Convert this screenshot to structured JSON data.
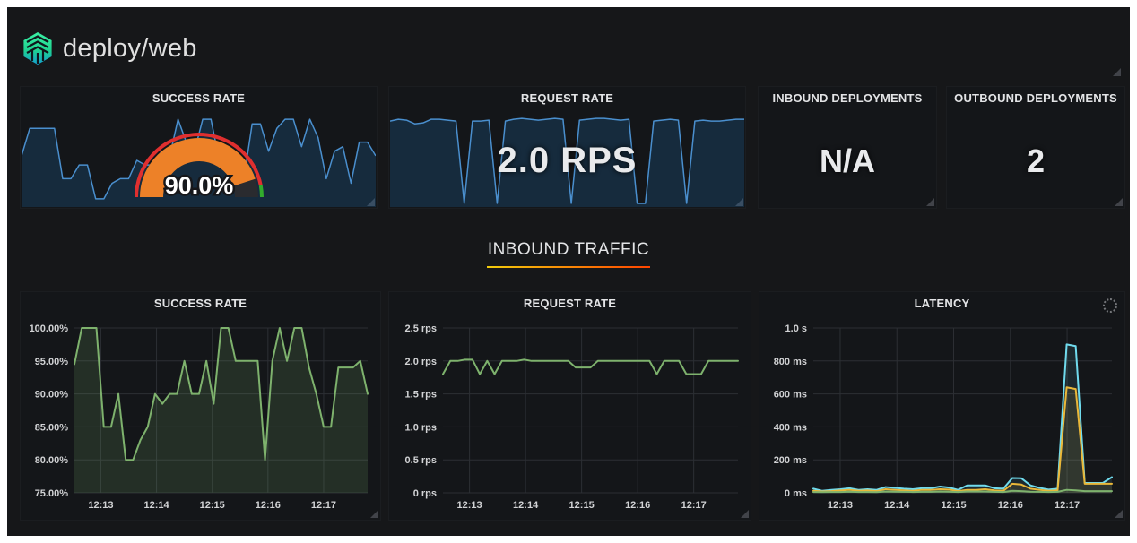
{
  "header": {
    "title": "deploy/web",
    "logo": "linkerd-logo"
  },
  "panels": {
    "success_rate_stat": {
      "title": "SUCCESS RATE",
      "value": "90.0%"
    },
    "request_rate_stat": {
      "title": "REQUEST RATE",
      "value": "2.0 RPS"
    },
    "inbound_deployments": {
      "title": "INBOUND DEPLOYMENTS",
      "value": "N/A"
    },
    "outbound_deployments": {
      "title": "OUTBOUND DEPLOYMENTS",
      "value": "2"
    }
  },
  "section": {
    "title": "INBOUND TRAFFIC"
  },
  "colors": {
    "blue_spark_line": "#4a8fce",
    "blue_spark_fill": "rgba(31,120,193,0.22)",
    "green_series": "#7EB26D",
    "cyan_series": "#70DBED",
    "yellow_series": "#EAB839",
    "gauge_orange": "#ED8128",
    "gauge_red_ring": "#E02F2F",
    "gauge_green_ring": "#32AC2D",
    "section_underline_from": "#f2cc0c",
    "section_underline_to": "#ff4400",
    "panel_bg": "#141619",
    "dashboard_bg": "#161719"
  },
  "chart_data": [
    {
      "id": "success-rate-sparkline",
      "type": "sparkline",
      "panel": "SUCCESS RATE",
      "ylim": [
        0,
        1
      ],
      "line_color": "#4a8fce",
      "fill_color": "rgba(31,120,193,0.22)",
      "values": [
        0.55,
        0.85,
        0.85,
        0.85,
        0.85,
        0.3,
        0.3,
        0.45,
        0.45,
        0.08,
        0.08,
        0.25,
        0.3,
        0.3,
        0.5,
        0.45,
        0.45,
        0.6,
        0.55,
        0.95,
        0.7,
        0.6,
        0.95,
        0.95,
        0.5,
        0.65,
        0.3,
        0.3,
        0.9,
        0.9,
        0.6,
        0.85,
        0.95,
        0.95,
        0.65,
        0.95,
        0.75,
        0.3,
        0.6,
        0.65,
        0.25,
        0.7,
        0.7,
        0.55
      ]
    },
    {
      "id": "success-rate-gauge",
      "type": "gauge",
      "value": 90.0,
      "label": "90.0%",
      "unit": "%",
      "min": 0,
      "max": 100,
      "value_band_color": "#ED8128",
      "empty_band_color": "#2a2b2f",
      "threshold_ring": [
        {
          "from": 0,
          "to": 94,
          "color": "#E02F2F"
        },
        {
          "from": 94,
          "to": 100,
          "color": "#32AC2D"
        }
      ]
    },
    {
      "id": "request-rate-sparkline",
      "type": "sparkline",
      "panel": "REQUEST RATE",
      "ylim": [
        0,
        1
      ],
      "line_color": "#4a8fce",
      "fill_color": "rgba(31,120,193,0.22)",
      "values": [
        0.93,
        0.95,
        0.94,
        0.9,
        0.91,
        0.95,
        0.95,
        0.94,
        0.93,
        0.03,
        0.93,
        0.93,
        0.94,
        0.03,
        0.93,
        0.95,
        0.96,
        0.95,
        0.94,
        0.95,
        0.96,
        0.95,
        0.03,
        0.94,
        0.95,
        0.96,
        0.96,
        0.95,
        0.94,
        0.95,
        0.03,
        0.03,
        0.93,
        0.94,
        0.95,
        0.94,
        0.03,
        0.93,
        0.94,
        0.93,
        0.93,
        0.94,
        0.95,
        0.95
      ]
    },
    {
      "id": "inbound-success-rate-chart",
      "type": "line",
      "title": "SUCCESS RATE",
      "ylim": [
        75,
        100
      ],
      "grid": true,
      "legend": "none",
      "yticks": {
        "values": [
          75,
          80,
          85,
          90,
          95,
          100
        ],
        "labels": [
          "75.00%",
          "80.00%",
          "85.00%",
          "90.00%",
          "95.00%",
          "100.00%"
        ]
      },
      "xticks": {
        "labels": [
          "12:13",
          "12:14",
          "12:15",
          "12:16",
          "12:17"
        ],
        "positions": [
          0.09,
          0.28,
          0.47,
          0.66,
          0.85
        ]
      },
      "series": [
        {
          "name": "success-rate",
          "color": "#7EB26D",
          "fill": "rgba(126,178,109,0.16)",
          "values": [
            94.5,
            100,
            100,
            100,
            85,
            85,
            90,
            80,
            80,
            83,
            85,
            90,
            88.5,
            90,
            90,
            95,
            90,
            90,
            95,
            88.5,
            100,
            100,
            95,
            95,
            95,
            95,
            80,
            95,
            100,
            95,
            100,
            100,
            94,
            90,
            85,
            85,
            94,
            94,
            94,
            95,
            90
          ]
        }
      ]
    },
    {
      "id": "inbound-request-rate-chart",
      "type": "line",
      "title": "REQUEST RATE",
      "ylim": [
        0,
        2.5
      ],
      "grid": true,
      "legend": "none",
      "yticks": {
        "values": [
          0,
          0.5,
          1,
          1.5,
          2,
          2.5
        ],
        "labels": [
          "0 rps",
          "0.5 rps",
          "1.0 rps",
          "1.5 rps",
          "2.0 rps",
          "2.5 rps"
        ]
      },
      "xticks": {
        "labels": [
          "12:13",
          "12:14",
          "12:15",
          "12:16",
          "12:17"
        ],
        "positions": [
          0.09,
          0.28,
          0.47,
          0.66,
          0.85
        ]
      },
      "series": [
        {
          "name": "request-rate",
          "color": "#7EB26D",
          "fill": "none",
          "values": [
            1.8,
            2.0,
            2.0,
            2.02,
            2.02,
            1.8,
            2.0,
            1.8,
            2.0,
            2.0,
            2.0,
            2.02,
            2.0,
            2.0,
            2.0,
            2.0,
            2.0,
            2.0,
            1.9,
            1.9,
            1.9,
            2.0,
            2.0,
            2.0,
            2.0,
            2.0,
            2.0,
            2.0,
            2.0,
            1.8,
            2.0,
            2.0,
            2.0,
            1.8,
            1.8,
            1.8,
            2.0,
            2.0,
            2.0,
            2.0,
            2.0
          ]
        }
      ]
    },
    {
      "id": "inbound-latency-chart",
      "type": "line",
      "title": "LATENCY",
      "ylim": [
        0,
        1000
      ],
      "grid": true,
      "legend": "none",
      "yticks": {
        "values": [
          0,
          200,
          400,
          600,
          800,
          1000
        ],
        "labels": [
          "0 ms",
          "200 ms",
          "400 ms",
          "600 ms",
          "800 ms",
          "1.0 s"
        ]
      },
      "xticks": {
        "labels": [
          "12:13",
          "12:14",
          "12:15",
          "12:16",
          "12:17"
        ],
        "positions": [
          0.09,
          0.28,
          0.47,
          0.66,
          0.85
        ]
      },
      "series": [
        {
          "name": "latency-cyan",
          "color": "#70DBED",
          "fill": "rgba(112,219,237,0.10)",
          "values": [
            25,
            12,
            18,
            22,
            28,
            18,
            22,
            18,
            35,
            30,
            25,
            22,
            28,
            28,
            38,
            32,
            18,
            45,
            45,
            45,
            28,
            25,
            90,
            88,
            45,
            30,
            20,
            25,
            900,
            890,
            60,
            60,
            60,
            95
          ]
        },
        {
          "name": "latency-yellow",
          "color": "#EAB839",
          "fill": "rgba(234,184,57,0.10)",
          "values": [
            12,
            8,
            10,
            14,
            18,
            12,
            14,
            10,
            22,
            18,
            15,
            12,
            18,
            18,
            22,
            20,
            10,
            18,
            18,
            22,
            15,
            12,
            55,
            50,
            25,
            18,
            12,
            15,
            640,
            630,
            55,
            55,
            55,
            55
          ]
        },
        {
          "name": "latency-green",
          "color": "#7EB26D",
          "fill": "rgba(126,178,109,0.10)",
          "values": [
            5,
            4,
            5,
            5,
            7,
            5,
            5,
            4,
            8,
            7,
            6,
            5,
            6,
            6,
            8,
            7,
            5,
            8,
            8,
            8,
            6,
            5,
            12,
            10,
            7,
            6,
            5,
            6,
            18,
            15,
            10,
            10,
            10,
            10
          ]
        }
      ]
    }
  ]
}
